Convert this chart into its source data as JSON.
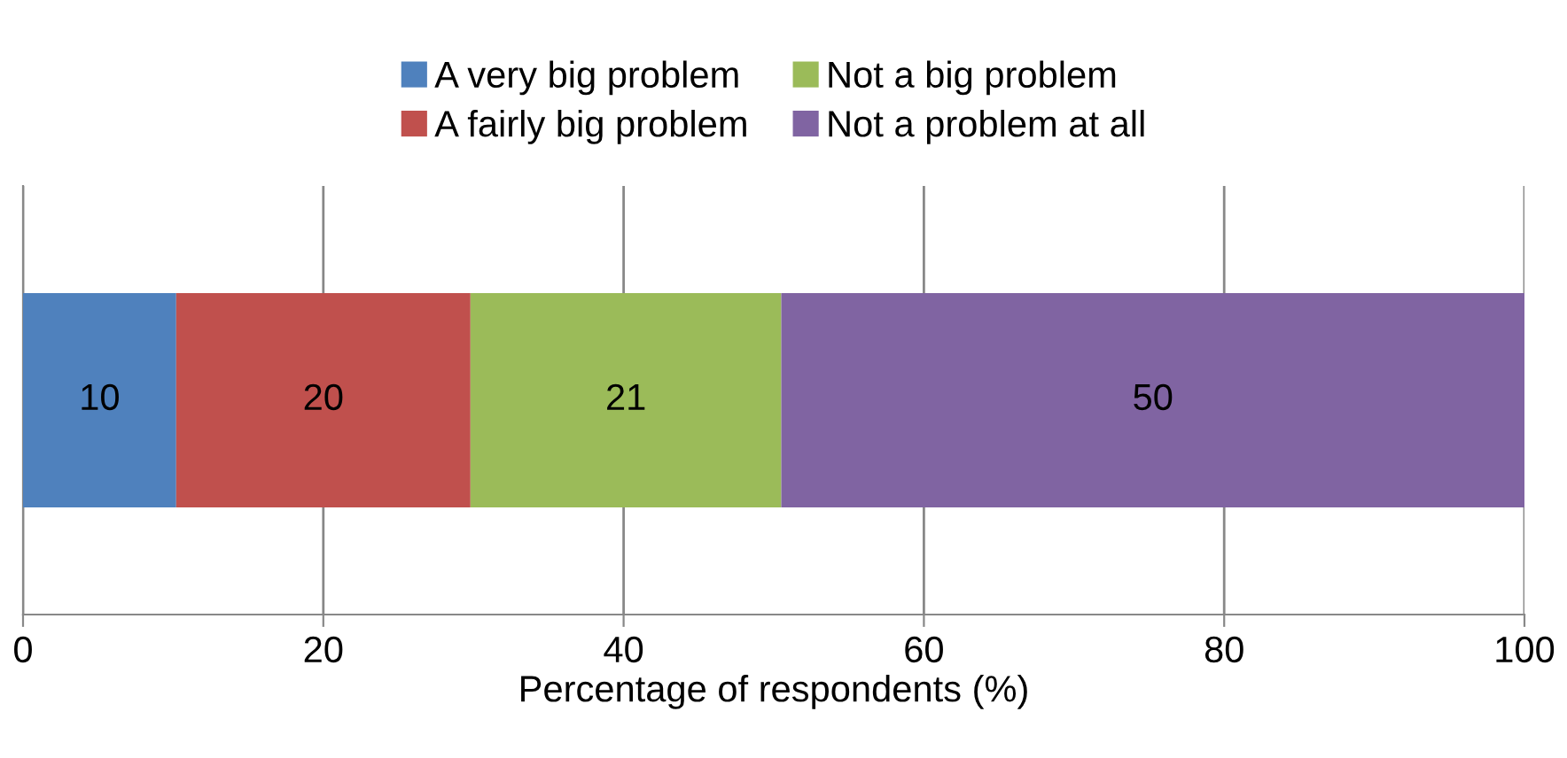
{
  "chart_data": {
    "type": "bar",
    "orientation": "horizontal",
    "stacked": true,
    "categories": [
      null
    ],
    "series": [
      {
        "name": "A very big problem",
        "color": "#4f81bd",
        "values": [
          10.2
        ],
        "value_labels": [
          "10"
        ]
      },
      {
        "name": "A fairly big problem",
        "color": "#c0504d",
        "values": [
          19.6
        ],
        "value_labels": [
          "20"
        ]
      },
      {
        "name": "Not a big problem",
        "color": "#9bbb59",
        "values": [
          20.7
        ],
        "value_labels": [
          "21"
        ]
      },
      {
        "name": "Not a problem at all",
        "color": "#8064a2",
        "values": [
          49.5
        ],
        "value_labels": [
          "50"
        ]
      }
    ],
    "xlabel": "Percentage of respondents (%)",
    "xlim": [
      0,
      100
    ],
    "xticks": [
      0,
      20,
      40,
      60,
      80,
      100
    ],
    "grid": "x",
    "legend": "top"
  }
}
